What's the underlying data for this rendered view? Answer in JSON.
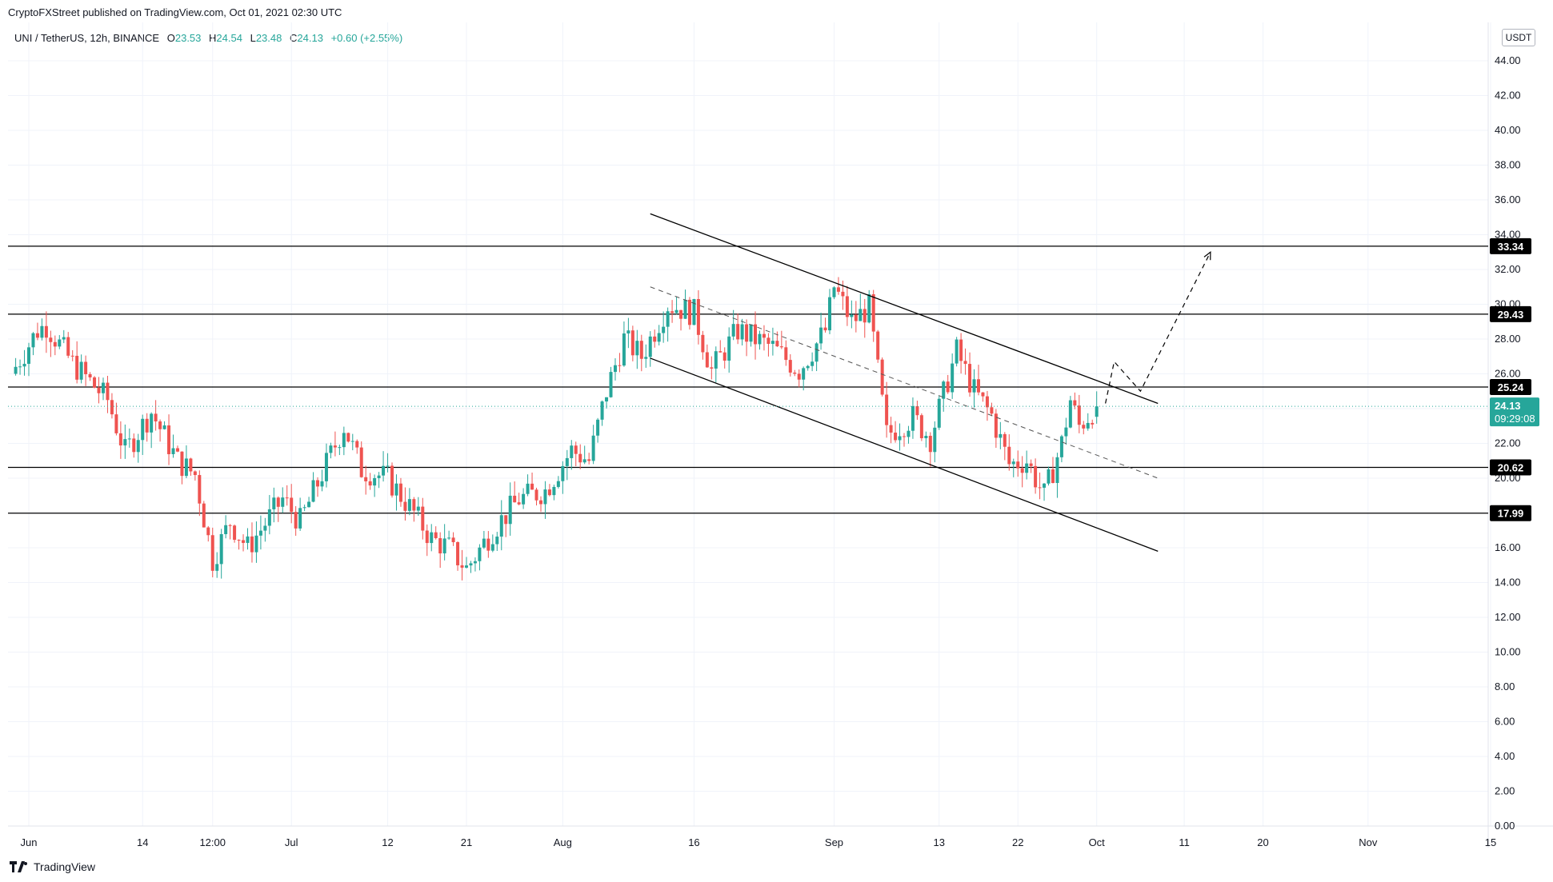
{
  "header": {
    "publisher_line": "CryptoFXStreet published on TradingView.com, Oct 01, 2021 02:30 UTC"
  },
  "symbol_bar": {
    "symbol": "UNI / TetherUS, 12h, BINANCE",
    "open_label": "O",
    "open": "23.53",
    "high_label": "H",
    "high": "24.54",
    "low_label": "L",
    "low": "23.48",
    "close_label": "C",
    "close": "24.13",
    "change": "+0.60 (+2.55%)"
  },
  "currency": "USDT",
  "footer": {
    "brand": "TradingView"
  },
  "colors": {
    "up": "#26a69a",
    "down": "#ef5350",
    "level": "#000000",
    "grid": "#f0f3fa",
    "current_price_tag": "#26a69a"
  },
  "chart_data": {
    "type": "candlestick",
    "title": "UNI / TetherUS, 12h, BINANCE",
    "ylim": [
      0,
      46
    ],
    "y_ticks": [
      "0.00",
      "2.00",
      "4.00",
      "6.00",
      "8.00",
      "10.00",
      "12.00",
      "14.00",
      "16.00",
      "18.00",
      "20.00",
      "22.00",
      "24.00",
      "26.00",
      "28.00",
      "30.00",
      "32.00",
      "34.00",
      "36.00",
      "38.00",
      "40.00",
      "42.00",
      "44.00"
    ],
    "x_ticks": [
      {
        "label": "Jun",
        "date": "2021-06-01"
      },
      {
        "label": "14",
        "date": "2021-06-14"
      },
      {
        "label": "12:00",
        "date": "2021-06-22"
      },
      {
        "label": "Jul",
        "date": "2021-07-01"
      },
      {
        "label": "12",
        "date": "2021-07-12"
      },
      {
        "label": "21",
        "date": "2021-07-21"
      },
      {
        "label": "Aug",
        "date": "2021-08-01"
      },
      {
        "label": "16",
        "date": "2021-08-16"
      },
      {
        "label": "Sep",
        "date": "2021-09-01"
      },
      {
        "label": "13",
        "date": "2021-09-13"
      },
      {
        "label": "22",
        "date": "2021-09-22"
      },
      {
        "label": "Oct",
        "date": "2021-10-01"
      },
      {
        "label": "11",
        "date": "2021-10-11"
      },
      {
        "label": "20",
        "date": "2021-10-20"
      },
      {
        "label": "Nov",
        "date": "2021-11-01"
      },
      {
        "label": "15",
        "date": "2021-11-15"
      }
    ],
    "price_path": [
      {
        "date": "2021-05-30",
        "close": 26.0
      },
      {
        "date": "2021-06-02",
        "close": 28.5
      },
      {
        "date": "2021-06-03",
        "close": 28.8
      },
      {
        "date": "2021-06-06",
        "close": 26.6
      },
      {
        "date": "2021-06-10",
        "close": 24.5
      },
      {
        "date": "2021-06-12",
        "close": 21.5
      },
      {
        "date": "2021-06-15",
        "close": 23.8
      },
      {
        "date": "2021-06-18",
        "close": 21.0
      },
      {
        "date": "2021-06-20",
        "close": 20.2
      },
      {
        "date": "2021-06-22",
        "close": 15.3
      },
      {
        "date": "2021-06-24",
        "close": 17.5
      },
      {
        "date": "2021-06-26",
        "close": 16.0
      },
      {
        "date": "2021-06-30",
        "close": 18.8
      },
      {
        "date": "2021-07-02",
        "close": 17.5
      },
      {
        "date": "2021-07-05",
        "close": 20.8
      },
      {
        "date": "2021-07-07",
        "close": 23.0
      },
      {
        "date": "2021-07-09",
        "close": 20.5
      },
      {
        "date": "2021-07-12",
        "close": 20.0
      },
      {
        "date": "2021-07-15",
        "close": 18.0
      },
      {
        "date": "2021-07-17",
        "close": 16.5
      },
      {
        "date": "2021-07-19",
        "close": 16.0
      },
      {
        "date": "2021-07-21",
        "close": 14.8
      },
      {
        "date": "2021-07-24",
        "close": 17.0
      },
      {
        "date": "2021-07-27",
        "close": 18.8
      },
      {
        "date": "2021-07-30",
        "close": 19.3
      },
      {
        "date": "2021-08-02",
        "close": 21.6
      },
      {
        "date": "2021-08-04",
        "close": 21.0
      },
      {
        "date": "2021-08-06",
        "close": 25.0
      },
      {
        "date": "2021-08-08",
        "close": 28.0
      },
      {
        "date": "2021-08-10",
        "close": 27.0
      },
      {
        "date": "2021-08-13",
        "close": 30.0
      },
      {
        "date": "2021-08-16",
        "close": 29.5
      },
      {
        "date": "2021-08-18",
        "close": 26.2
      },
      {
        "date": "2021-08-21",
        "close": 28.5
      },
      {
        "date": "2021-08-25",
        "close": 27.5
      },
      {
        "date": "2021-08-28",
        "close": 26.2
      },
      {
        "date": "2021-08-31",
        "close": 28.5
      },
      {
        "date": "2021-09-01",
        "close": 31.0
      },
      {
        "date": "2021-09-03",
        "close": 29.0
      },
      {
        "date": "2021-09-05",
        "close": 29.8
      },
      {
        "date": "2021-09-07",
        "close": 22.5
      },
      {
        "date": "2021-09-10",
        "close": 23.5
      },
      {
        "date": "2021-09-12",
        "close": 22.3
      },
      {
        "date": "2021-09-15",
        "close": 27.3
      },
      {
        "date": "2021-09-17",
        "close": 25.0
      },
      {
        "date": "2021-09-19",
        "close": 23.6
      },
      {
        "date": "2021-09-21",
        "close": 20.8
      },
      {
        "date": "2021-09-23",
        "close": 21.0
      },
      {
        "date": "2021-09-25",
        "close": 19.0
      },
      {
        "date": "2021-09-27",
        "close": 22.0
      },
      {
        "date": "2021-09-28",
        "close": 24.5
      },
      {
        "date": "2021-09-29",
        "close": 23.0
      },
      {
        "date": "2021-10-01",
        "close": 24.13
      }
    ],
    "horizontal_levels": [
      {
        "price": 33.34,
        "label": "33.34"
      },
      {
        "price": 29.43,
        "label": "29.43"
      },
      {
        "price": 25.24,
        "label": "25.24"
      },
      {
        "price": 20.62,
        "label": "20.62"
      },
      {
        "price": 17.99,
        "label": "17.99"
      }
    ],
    "current_price": {
      "value": 24.13,
      "label": "24.13",
      "countdown": "09:29:08"
    },
    "trendlines": [
      {
        "name": "channel-upper",
        "style": "solid",
        "from": {
          "date": "2021-08-11",
          "price": 35.2
        },
        "to": {
          "date": "2021-10-08",
          "price": 24.3
        }
      },
      {
        "name": "channel-lower",
        "style": "solid",
        "from": {
          "date": "2021-08-11",
          "price": 26.9
        },
        "to": {
          "date": "2021-10-08",
          "price": 15.8
        }
      },
      {
        "name": "channel-mid",
        "style": "dashed",
        "from": {
          "date": "2021-08-11",
          "price": 31.0
        },
        "to": {
          "date": "2021-10-08",
          "price": 20.0
        }
      }
    ],
    "projection_path": [
      {
        "date": "2021-10-02",
        "price": 24.3
      },
      {
        "date": "2021-10-03",
        "price": 26.7
      },
      {
        "date": "2021-10-06",
        "price": 25.0
      },
      {
        "date": "2021-10-14",
        "price": 33.0
      }
    ]
  }
}
